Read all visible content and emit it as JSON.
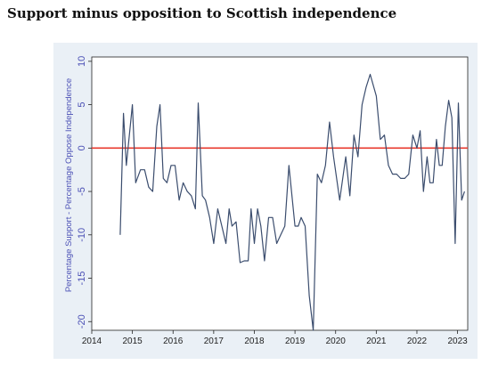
{
  "page": {
    "title": "Support minus opposition to Scottish independence"
  },
  "chart_data": {
    "type": "line",
    "title": "",
    "xlabel": "",
    "ylabel": "Percentage Support - Percentage Oppose Independence",
    "xlim": [
      2014,
      2023.25
    ],
    "ylim": [
      -21,
      10.5
    ],
    "x_ticks": [
      2014,
      2015,
      2016,
      2017,
      2018,
      2019,
      2020,
      2021,
      2022,
      2023
    ],
    "y_ticks": [
      10,
      5,
      0,
      -5,
      -10,
      -15,
      -20
    ],
    "grid": false,
    "legend": "none",
    "reference_line": {
      "y": 0,
      "color": "#e8392e"
    },
    "colors": {
      "series": "#3b4d6e",
      "axis_text": "#4a4fb5",
      "plot_bg": "#ffffff",
      "frame_bg": "#eaf0f6"
    },
    "series": [
      {
        "x": [
          2014.7,
          2014.78,
          2014.85,
          2015.0,
          2015.08,
          2015.2,
          2015.3,
          2015.4,
          2015.5,
          2015.6,
          2015.68,
          2015.76,
          2015.85,
          2015.95,
          2016.05,
          2016.15,
          2016.25,
          2016.35,
          2016.45,
          2016.55,
          2016.62,
          2016.72,
          2016.8,
          2016.9,
          2017.0,
          2017.1,
          2017.2,
          2017.3,
          2017.38,
          2017.45,
          2017.55,
          2017.65,
          2017.75,
          2017.85,
          2017.92,
          2018.0,
          2018.08,
          2018.16,
          2018.25,
          2018.35,
          2018.45,
          2018.55,
          2018.65,
          2018.75,
          2018.85,
          2019.0,
          2019.08,
          2019.15,
          2019.25,
          2019.35,
          2019.45,
          2019.55,
          2019.65,
          2019.75,
          2019.85,
          2019.95,
          2020.1,
          2020.25,
          2020.35,
          2020.45,
          2020.55,
          2020.65,
          2020.75,
          2020.85,
          2021.0,
          2021.1,
          2021.2,
          2021.3,
          2021.4,
          2021.5,
          2021.6,
          2021.7,
          2021.8,
          2021.9,
          2022.0,
          2022.08,
          2022.16,
          2022.25,
          2022.32,
          2022.4,
          2022.48,
          2022.55,
          2022.62,
          2022.7,
          2022.78,
          2022.86,
          2022.94,
          2023.02,
          2023.1,
          2023.17
        ],
        "y": [
          -10,
          4,
          -2,
          5,
          -4,
          -2.5,
          -2.5,
          -4.5,
          -5,
          2.5,
          5,
          -3.5,
          -4,
          -2,
          -2,
          -6,
          -4,
          -5,
          -5.5,
          -7,
          5.2,
          -5.5,
          -6,
          -8,
          -11,
          -7,
          -9,
          -11,
          -7,
          -9,
          -8.5,
          -13.2,
          -13,
          -13,
          -7,
          -11,
          -7,
          -9,
          -13,
          -8,
          -8,
          -11,
          -10,
          -9,
          -2,
          -9,
          -9,
          -8,
          -9,
          -17,
          -21,
          -3,
          -4,
          -2,
          3,
          -1,
          -6,
          -1,
          -5.5,
          1.5,
          -1,
          5,
          7,
          8.5,
          6,
          1,
          1.5,
          -2,
          -3,
          -3,
          -3.5,
          -3.5,
          -3,
          1.5,
          0,
          2,
          -5,
          -1,
          -4,
          -4,
          1,
          -2,
          -2,
          2.5,
          5.5,
          3.5,
          -11,
          5.2,
          -6,
          -5
        ]
      }
    ]
  }
}
